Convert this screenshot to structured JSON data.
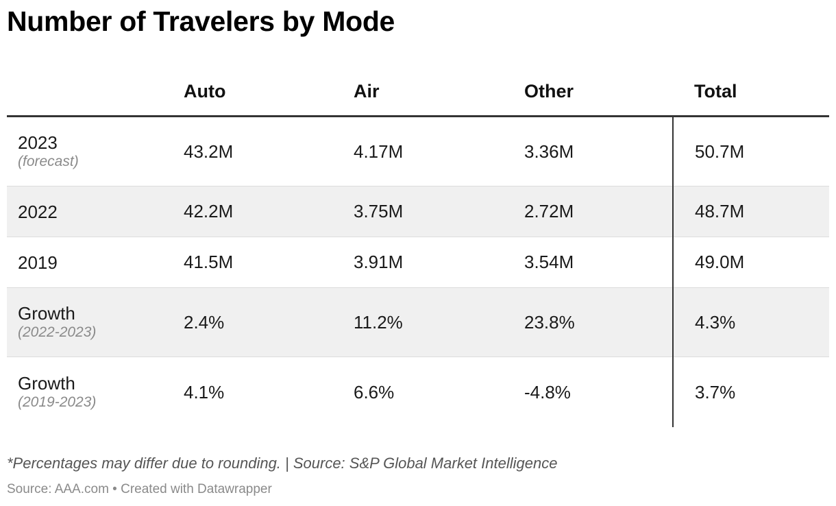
{
  "title": "Number of Travelers by Mode",
  "columns": [
    "",
    "Auto",
    "Air",
    "Other",
    "Total"
  ],
  "rows": [
    {
      "label": "2023",
      "sublabel": "(forecast)",
      "auto": "43.2M",
      "air": "4.17M",
      "other": "3.36M",
      "total": "50.7M"
    },
    {
      "label": "2022",
      "sublabel": "",
      "auto": "42.2M",
      "air": "3.75M",
      "other": "2.72M",
      "total": "48.7M"
    },
    {
      "label": "2019",
      "sublabel": "",
      "auto": "41.5M",
      "air": "3.91M",
      "other": "3.54M",
      "total": "49.0M"
    },
    {
      "label": "Growth",
      "sublabel": "(2022-2023)",
      "auto": "2.4%",
      "air": "11.2%",
      "other": "23.8%",
      "total": "4.3%"
    },
    {
      "label": "Growth",
      "sublabel": "(2019-2023)",
      "auto": "4.1%",
      "air": "6.6%",
      "other": "-4.8%",
      "total": "3.7%"
    }
  ],
  "note": "*Percentages may differ due to rounding. | Source: S&P Global Market Intelligence",
  "footer": "Source: AAA.com • Created with Datawrapper",
  "chart_data": {
    "type": "table",
    "title": "Number of Travelers by Mode",
    "columns": [
      "Auto",
      "Air",
      "Other",
      "Total"
    ],
    "row_labels": [
      "2023 (forecast)",
      "2022",
      "2019",
      "Growth (2022-2023)",
      "Growth (2019-2023)"
    ],
    "values_millions": {
      "2023 (forecast)": [
        43.2,
        4.17,
        3.36,
        50.7
      ],
      "2022": [
        42.2,
        3.75,
        2.72,
        48.7
      ],
      "2019": [
        41.5,
        3.91,
        3.54,
        49.0
      ]
    },
    "growth_percent": {
      "Growth (2022-2023)": [
        2.4,
        11.2,
        23.8,
        4.3
      ],
      "Growth (2019-2023)": [
        4.1,
        6.6,
        -4.8,
        3.7
      ]
    }
  }
}
